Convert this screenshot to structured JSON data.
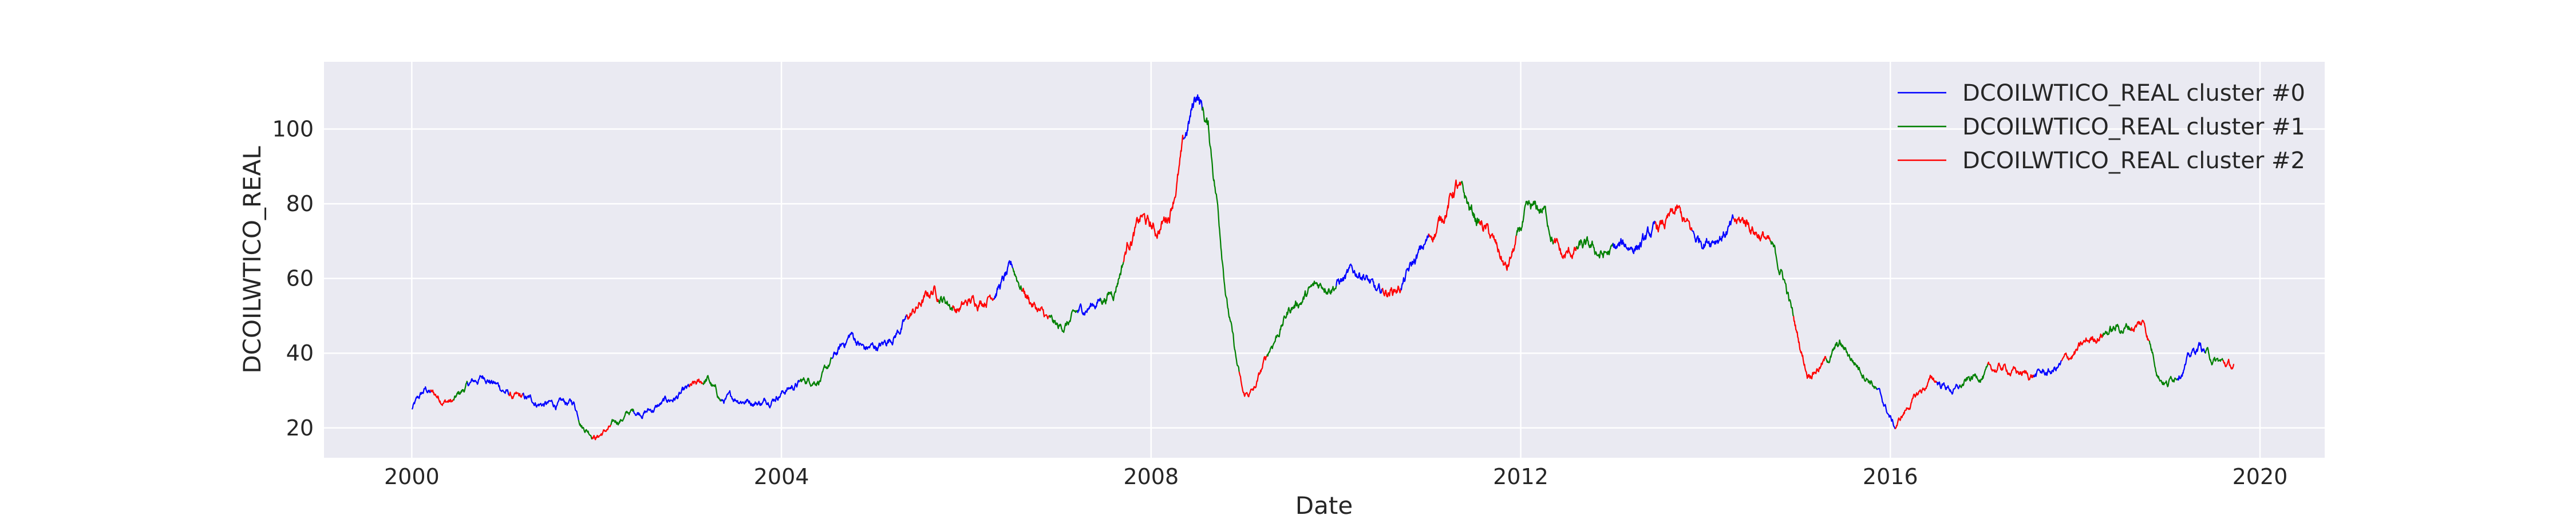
{
  "chart_data": {
    "type": "line",
    "title": "",
    "xlabel": "Date",
    "ylabel": "DCOILWTICO_REAL",
    "xlim": [
      1999.05,
      2020.7
    ],
    "ylim": [
      12,
      118
    ],
    "xticks": [
      2000,
      2004,
      2008,
      2012,
      2016,
      2020
    ],
    "xtick_labels": [
      "2000",
      "2004",
      "2008",
      "2012",
      "2016",
      "2020"
    ],
    "yticks": [
      20,
      40,
      60,
      80,
      100
    ],
    "ytick_labels": [
      "20",
      "40",
      "60",
      "80",
      "100"
    ],
    "grid": true,
    "legend_position": "top-right",
    "colors": {
      "background": "#EAEAF2",
      "grid": "#FFFFFF",
      "cluster_0": "#0000FF",
      "cluster_1": "#008000",
      "cluster_2": "#FF0000"
    },
    "cluster_sequence": [
      [
        2000.0,
        2000.2,
        0
      ],
      [
        2000.2,
        2000.45,
        2
      ],
      [
        2000.45,
        2000.6,
        1
      ],
      [
        2000.6,
        2001.05,
        0
      ],
      [
        2001.05,
        2001.2,
        2
      ],
      [
        2001.2,
        2001.8,
        0
      ],
      [
        2001.8,
        2001.95,
        1
      ],
      [
        2001.95,
        2002.15,
        2
      ],
      [
        2002.15,
        2002.4,
        1
      ],
      [
        2002.4,
        2003.0,
        0
      ],
      [
        2003.0,
        2003.15,
        2
      ],
      [
        2003.15,
        2003.35,
        1
      ],
      [
        2003.35,
        2004.2,
        0
      ],
      [
        2004.2,
        2004.55,
        1
      ],
      [
        2004.55,
        2005.35,
        0
      ],
      [
        2005.35,
        2005.7,
        2
      ],
      [
        2005.7,
        2005.85,
        1
      ],
      [
        2005.85,
        2006.3,
        2
      ],
      [
        2006.3,
        2006.5,
        0
      ],
      [
        2006.5,
        2006.6,
        1
      ],
      [
        2006.6,
        2006.9,
        2
      ],
      [
        2006.9,
        2007.2,
        1
      ],
      [
        2007.2,
        2007.45,
        0
      ],
      [
        2007.45,
        2007.7,
        1
      ],
      [
        2007.7,
        2008.35,
        2
      ],
      [
        2008.35,
        2008.55,
        0
      ],
      [
        2008.55,
        2008.95,
        1
      ],
      [
        2008.95,
        2009.25,
        2
      ],
      [
        2009.25,
        2010.0,
        1
      ],
      [
        2010.0,
        2010.5,
        0
      ],
      [
        2010.5,
        2010.7,
        2
      ],
      [
        2010.7,
        2011.0,
        0
      ],
      [
        2011.0,
        2011.35,
        2
      ],
      [
        2011.35,
        2011.55,
        1
      ],
      [
        2011.55,
        2011.95,
        2
      ],
      [
        2011.95,
        2012.35,
        1
      ],
      [
        2012.35,
        2012.6,
        2
      ],
      [
        2012.6,
        2013.0,
        1
      ],
      [
        2013.0,
        2013.45,
        0
      ],
      [
        2013.45,
        2013.85,
        2
      ],
      [
        2013.85,
        2014.3,
        0
      ],
      [
        2014.3,
        2014.7,
        2
      ],
      [
        2014.7,
        2014.95,
        1
      ],
      [
        2014.95,
        2015.3,
        2
      ],
      [
        2015.3,
        2015.85,
        1
      ],
      [
        2015.85,
        2016.05,
        0
      ],
      [
        2016.05,
        2016.5,
        2
      ],
      [
        2016.5,
        2016.75,
        0
      ],
      [
        2016.75,
        2017.05,
        1
      ],
      [
        2017.05,
        2017.55,
        2
      ],
      [
        2017.55,
        2017.85,
        0
      ],
      [
        2017.85,
        2018.3,
        2
      ],
      [
        2018.3,
        2018.6,
        1
      ],
      [
        2018.6,
        2018.8,
        2
      ],
      [
        2018.8,
        2019.1,
        1
      ],
      [
        2019.1,
        2019.4,
        0
      ],
      [
        2019.4,
        2019.6,
        1
      ],
      [
        2019.6,
        2019.72,
        2
      ]
    ],
    "series": [
      {
        "name": "DCOILWTICO_REAL cluster #0",
        "color": "#0000FF",
        "cluster": 0
      },
      {
        "name": "DCOILWTICO_REAL cluster #1",
        "color": "#008000",
        "cluster": 1
      },
      {
        "name": "DCOILWTICO_REAL cluster #2",
        "color": "#FF0000",
        "cluster": 2
      }
    ],
    "trend_points": [
      [
        2000.0,
        25
      ],
      [
        2000.15,
        30
      ],
      [
        2000.3,
        28
      ],
      [
        2000.45,
        27
      ],
      [
        2000.6,
        31
      ],
      [
        2000.8,
        34
      ],
      [
        2000.95,
        31
      ],
      [
        2001.1,
        28
      ],
      [
        2001.3,
        27
      ],
      [
        2001.55,
        26
      ],
      [
        2001.75,
        26.5
      ],
      [
        2001.85,
        21
      ],
      [
        2002.0,
        18
      ],
      [
        2002.15,
        20
      ],
      [
        2002.35,
        24
      ],
      [
        2002.6,
        25
      ],
      [
        2002.85,
        28
      ],
      [
        2003.1,
        31
      ],
      [
        2003.2,
        33
      ],
      [
        2003.35,
        27
      ],
      [
        2003.55,
        28
      ],
      [
        2003.8,
        27
      ],
      [
        2004.0,
        30
      ],
      [
        2004.2,
        32
      ],
      [
        2004.45,
        34
      ],
      [
        2004.75,
        45
      ],
      [
        2004.9,
        41
      ],
      [
        2005.1,
        42
      ],
      [
        2005.4,
        50
      ],
      [
        2005.65,
        57
      ],
      [
        2005.9,
        52
      ],
      [
        2006.2,
        55
      ],
      [
        2006.5,
        62
      ],
      [
        2006.7,
        54
      ],
      [
        2006.9,
        48
      ],
      [
        2007.0,
        46
      ],
      [
        2007.3,
        52
      ],
      [
        2007.6,
        57
      ],
      [
        2007.75,
        70
      ],
      [
        2007.9,
        76
      ],
      [
        2008.05,
        72
      ],
      [
        2008.2,
        78
      ],
      [
        2008.35,
        95
      ],
      [
        2008.5,
        110
      ],
      [
        2008.62,
        100
      ],
      [
        2008.72,
        80
      ],
      [
        2008.82,
        55
      ],
      [
        2008.92,
        38
      ],
      [
        2009.0,
        28
      ],
      [
        2009.12,
        30
      ],
      [
        2009.3,
        42
      ],
      [
        2009.5,
        52
      ],
      [
        2009.7,
        56
      ],
      [
        2009.9,
        59
      ],
      [
        2010.1,
        60
      ],
      [
        2010.3,
        62
      ],
      [
        2010.45,
        55
      ],
      [
        2010.7,
        58
      ],
      [
        2010.9,
        66
      ],
      [
        2011.1,
        74
      ],
      [
        2011.3,
        85
      ],
      [
        2011.45,
        78
      ],
      [
        2011.65,
        72
      ],
      [
        2011.85,
        62
      ],
      [
        2012.05,
        76
      ],
      [
        2012.25,
        78
      ],
      [
        2012.45,
        65
      ],
      [
        2012.65,
        68
      ],
      [
        2012.9,
        66
      ],
      [
        2013.1,
        68
      ],
      [
        2013.35,
        70
      ],
      [
        2013.7,
        77
      ],
      [
        2013.9,
        70
      ],
      [
        2014.2,
        73
      ],
      [
        2014.45,
        75
      ],
      [
        2014.65,
        71
      ],
      [
        2014.85,
        60
      ],
      [
        2015.0,
        44
      ],
      [
        2015.1,
        35
      ],
      [
        2015.3,
        38
      ],
      [
        2015.45,
        42
      ],
      [
        2015.6,
        38
      ],
      [
        2015.8,
        33
      ],
      [
        2016.05,
        20
      ],
      [
        2016.2,
        26
      ],
      [
        2016.45,
        33
      ],
      [
        2016.7,
        30
      ],
      [
        2016.95,
        34
      ],
      [
        2017.2,
        36
      ],
      [
        2017.5,
        34
      ],
      [
        2017.75,
        35
      ],
      [
        2018.0,
        40
      ],
      [
        2018.3,
        46
      ],
      [
        2018.55,
        47
      ],
      [
        2018.75,
        48
      ],
      [
        2018.9,
        35
      ],
      [
        2019.0,
        32
      ],
      [
        2019.2,
        38
      ],
      [
        2019.35,
        42
      ],
      [
        2019.5,
        38
      ],
      [
        2019.72,
        36
      ]
    ]
  }
}
